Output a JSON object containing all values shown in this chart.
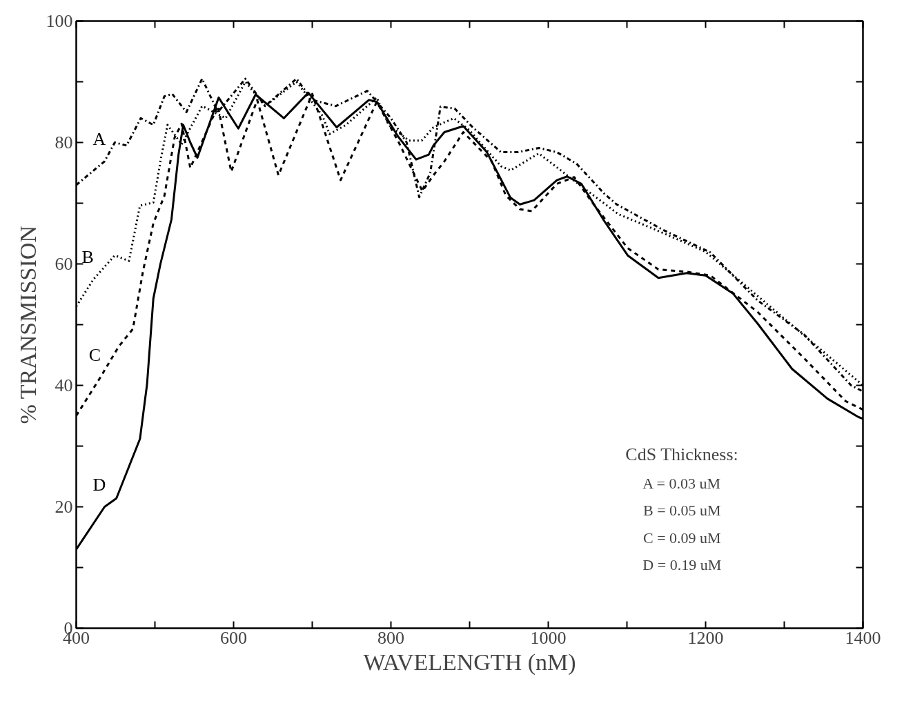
{
  "chart_data": {
    "type": "line",
    "xlabel": "WAVELENGTH (nM)",
    "ylabel": "% TRANSMISSION",
    "xlim": [
      400,
      1400
    ],
    "ylim": [
      0,
      100
    ],
    "xticks": [
      400,
      {
        "value": 500,
        "label": null
      },
      600,
      {
        "value": 700,
        "label": null
      },
      800,
      {
        "value": 900,
        "label": null
      },
      1000,
      {
        "value": 1100,
        "label": null
      },
      1200,
      {
        "value": 1300,
        "label": null
      },
      1400
    ],
    "yticks": [
      0,
      {
        "value": 10,
        "label": null
      },
      20,
      {
        "value": 30,
        "label": null
      },
      40,
      {
        "value": 50,
        "label": null
      },
      60,
      {
        "value": 70,
        "label": null
      },
      80,
      {
        "value": 90,
        "label": null
      },
      100
    ],
    "grid": false,
    "marker": "none",
    "annotations": [
      "CdS Thickness:",
      "A = 0.03 uM",
      "B = 0.05 uM",
      "C = 0.09 uM",
      "D = 0.19 uM"
    ],
    "series": [
      {
        "name": "A",
        "color": "#000000",
        "line_style": "dashdot",
        "x": [
          400,
          436,
          449,
          464,
          482,
          498,
          512,
          522,
          540,
          560,
          580,
          615,
          640,
          680,
          700,
          730,
          770,
          800,
          820,
          836,
          850,
          863,
          881,
          904,
          940,
          961,
          988,
          1011,
          1036,
          1071,
          1087,
          1146,
          1206,
          1266,
          1325,
          1385,
          1400
        ],
        "values": [
          73,
          76.9,
          80,
          79.5,
          84,
          82.9,
          87.6,
          88,
          85,
          90.5,
          85,
          90.5,
          86,
          90.5,
          87,
          86,
          88.5,
          84,
          80,
          71,
          75,
          85.9,
          85.6,
          82.5,
          78.4,
          78.4,
          79.1,
          78.4,
          76.5,
          71.6,
          69.8,
          65.6,
          61.9,
          54,
          48.4,
          40,
          39
        ]
      },
      {
        "name": "B",
        "color": "#000000",
        "line_style": "dotted",
        "x": [
          400,
          422,
          449,
          467,
          481,
          498,
          507,
          516,
          534,
          560,
          590,
          615,
          640,
          660,
          680,
          713,
          722,
          743,
          782,
          797,
          823,
          839,
          854,
          880,
          900,
          920,
          940,
          952,
          975,
          988,
          1030,
          1089,
          1137,
          1200,
          1300,
          1400
        ],
        "values": [
          53,
          57.5,
          61.4,
          60.5,
          69.6,
          70.1,
          76.9,
          82.9,
          79.7,
          86,
          84,
          90,
          86,
          88,
          90,
          84.4,
          81.4,
          82.9,
          87.4,
          82.9,
          80.3,
          80.3,
          82.5,
          84,
          82,
          79,
          76.1,
          75.4,
          77.2,
          78.2,
          74,
          68.2,
          65.6,
          62,
          51,
          40
        ]
      },
      {
        "name": "C",
        "color": "#000000",
        "line_style": "dashed",
        "x": [
          400,
          431,
          454,
          472,
          485,
          498,
          512,
          525,
          534,
          545,
          580,
          597,
          630,
          657,
          700,
          736,
          782,
          810,
          840,
          854,
          868,
          892,
          928,
          946,
          964,
          979,
          1011,
          1033,
          1056,
          1101,
          1140,
          1176,
          1206,
          1266,
          1325,
          1378,
          1400
        ],
        "values": [
          35,
          41.4,
          46.4,
          49.3,
          58.9,
          66.7,
          71.2,
          80.8,
          83.1,
          75.8,
          86,
          75.2,
          87,
          74.6,
          88,
          73.8,
          86.7,
          80,
          72,
          74.6,
          76.9,
          81.7,
          76.9,
          71.3,
          69,
          68.7,
          73.2,
          74.3,
          70.1,
          62.6,
          59.1,
          58.7,
          58.1,
          52.1,
          44.5,
          37.4,
          36
        ]
      },
      {
        "name": "D",
        "color": "#000000",
        "line_style": "solid",
        "x": [
          400,
          436,
          451,
          481,
          490,
          498,
          507,
          521,
          530,
          536,
          545,
          554,
          581,
          606,
          628,
          664,
          695,
          731,
          772,
          782,
          809,
          832,
          848,
          854,
          868,
          892,
          922,
          952,
          964,
          982,
          1011,
          1024,
          1042,
          1071,
          1101,
          1140,
          1176,
          1200,
          1235,
          1266,
          1310,
          1355,
          1394,
          1400
        ],
        "values": [
          13,
          20,
          21.4,
          31.2,
          40.2,
          54.3,
          60,
          67.3,
          78,
          82.9,
          80,
          77.5,
          87.4,
          82.3,
          87.9,
          84,
          88.2,
          82.5,
          87,
          86.7,
          81,
          77.2,
          78,
          79.5,
          81.7,
          82.7,
          78.4,
          70.9,
          69.8,
          70.5,
          73.8,
          74.4,
          73.2,
          67.1,
          61.4,
          57.7,
          58.5,
          58.1,
          55.1,
          50.2,
          42.7,
          37.8,
          34.8,
          34.5
        ]
      }
    ]
  }
}
